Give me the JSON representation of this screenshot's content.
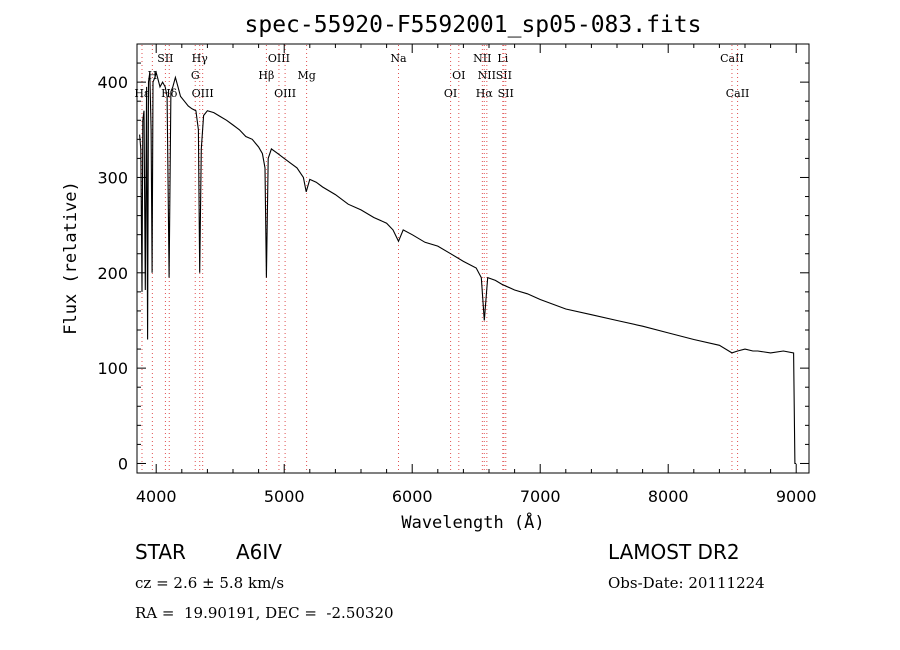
{
  "chart_data": {
    "type": "line",
    "title": "spec-55920-F5592001_sp05-083.fits",
    "xlabel": "Wavelength (Å)",
    "ylabel": "Flux (relative)",
    "xlim": [
      3850,
      9100
    ],
    "ylim": [
      -10,
      440
    ],
    "x_ticks": [
      4000,
      5000,
      6000,
      7000,
      8000,
      9000
    ],
    "y_ticks": [
      0,
      100,
      200,
      300,
      400
    ],
    "grid": false,
    "legend": "none",
    "series": [
      {
        "x": [
          3870,
          3880,
          3889,
          3895,
          3905,
          3915,
          3925,
          3933,
          3940,
          3950,
          3960,
          3968,
          3975,
          3990,
          4000,
          4010,
          4030,
          4050,
          4070,
          4085,
          4101,
          4115,
          4130,
          4150,
          4170,
          4190,
          4220,
          4250,
          4280,
          4310,
          4330,
          4340,
          4352,
          4370,
          4400,
          4450,
          4500,
          4550,
          4600,
          4650,
          4700,
          4750,
          4800,
          4830,
          4850,
          4861,
          4875,
          4900,
          4950,
          5000,
          5050,
          5100,
          5150,
          5172,
          5200,
          5250,
          5300,
          5400,
          5500,
          5600,
          5700,
          5800,
          5850,
          5893,
          5930,
          6000,
          6100,
          6200,
          6300,
          6400,
          6500,
          6540,
          6563,
          6590,
          6650,
          6700,
          6800,
          6900,
          7000,
          7200,
          7400,
          7600,
          7800,
          8000,
          8200,
          8400,
          8498,
          8542,
          8600,
          8662,
          8700,
          8800,
          8900,
          8980,
          8990,
          9000
        ],
        "y": [
          345,
          330,
          180,
          360,
          370,
          182,
          395,
          130,
          400,
          410,
          350,
          200,
          400,
          405,
          410,
          405,
          395,
          400,
          395,
          385,
          195,
          390,
          395,
          405,
          395,
          385,
          380,
          375,
          372,
          370,
          350,
          200,
          330,
          365,
          370,
          368,
          364,
          360,
          355,
          350,
          343,
          340,
          332,
          325,
          310,
          195,
          320,
          330,
          325,
          320,
          315,
          310,
          300,
          285,
          298,
          295,
          290,
          282,
          272,
          266,
          258,
          252,
          245,
          233,
          245,
          240,
          232,
          228,
          220,
          212,
          205,
          195,
          150,
          195,
          192,
          188,
          182,
          178,
          172,
          162,
          156,
          150,
          144,
          137,
          130,
          124,
          116,
          118,
          120,
          118,
          118,
          116,
          118,
          116,
          0,
          0
        ]
      }
    ],
    "lines": [
      {
        "wavelength": 3889,
        "label": "Hε",
        "row": 3
      },
      {
        "wavelength": 3970,
        "label": "H",
        "row": 2
      },
      {
        "wavelength": 4072,
        "label": "SII",
        "row": 1
      },
      {
        "wavelength": 4102,
        "label": "Hδ",
        "row": 3
      },
      {
        "wavelength": 4305,
        "label": "G",
        "row": 2
      },
      {
        "wavelength": 4340,
        "label": "Hγ",
        "row": 1
      },
      {
        "wavelength": 4363,
        "label": "OIII",
        "row": 3
      },
      {
        "wavelength": 4861,
        "label": "Hβ",
        "row": 2
      },
      {
        "wavelength": 4959,
        "label": "OIII",
        "row": 1
      },
      {
        "wavelength": 5007,
        "label": "OIII",
        "row": 3
      },
      {
        "wavelength": 5175,
        "label": "Mg",
        "row": 2
      },
      {
        "wavelength": 5893,
        "label": "Na",
        "row": 1
      },
      {
        "wavelength": 6300,
        "label": "OI",
        "row": 3
      },
      {
        "wavelength": 6364,
        "label": "OI",
        "row": 2
      },
      {
        "wavelength": 6548,
        "label": "NII",
        "row": 1
      },
      {
        "wavelength": 6563,
        "label": "Hα",
        "row": 3
      },
      {
        "wavelength": 6583,
        "label": "NII",
        "row": 2
      },
      {
        "wavelength": 6708,
        "label": "Li",
        "row": 1
      },
      {
        "wavelength": 6716,
        "label": "SII",
        "row": 2
      },
      {
        "wavelength": 6731,
        "label": "SII",
        "row": 3
      },
      {
        "wavelength": 8498,
        "label": "CaII",
        "row": 1
      },
      {
        "wavelength": 8542,
        "label": "CaII",
        "row": 3
      }
    ]
  },
  "info": {
    "object_type": "STAR",
    "subclass": "A6IV",
    "survey": "LAMOST DR2",
    "cz": "cz = 2.6 ± 5.8 km/s",
    "obs_date": "Obs-Date: 20111224",
    "coords": "RA =  19.90191, DEC =  -2.50320"
  },
  "colors": {
    "line_marker": "#e05050",
    "spectrum": "#000000"
  }
}
